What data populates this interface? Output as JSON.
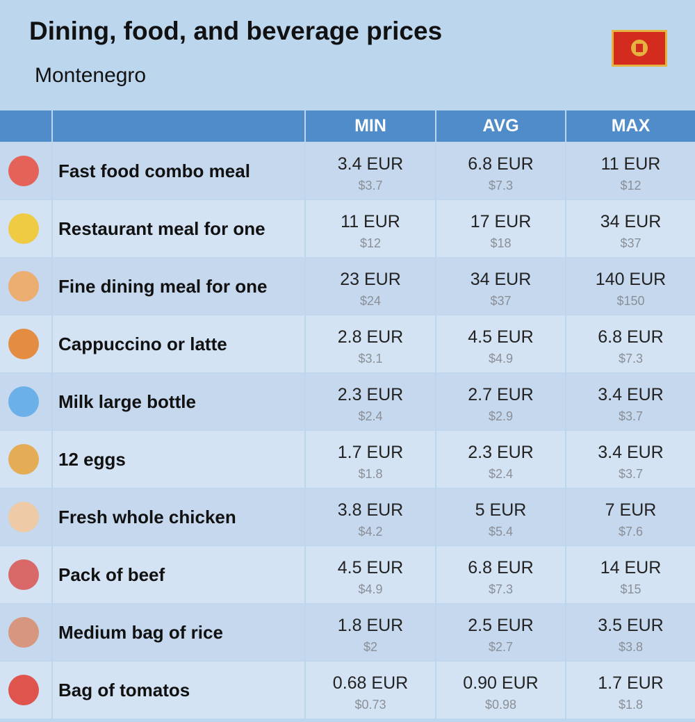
{
  "header": {
    "title": "Dining, food, and beverage prices",
    "subtitle": "Montenegro"
  },
  "table": {
    "columns": [
      "MIN",
      "AVG",
      "MAX"
    ],
    "rows": [
      {
        "label": "Fast food combo meal",
        "cells": [
          [
            "3.4 EUR",
            "$3.7"
          ],
          [
            "6.8 EUR",
            "$7.3"
          ],
          [
            "11 EUR",
            "$12"
          ]
        ]
      },
      {
        "label": "Restaurant meal for one",
        "cells": [
          [
            "11 EUR",
            "$12"
          ],
          [
            "17 EUR",
            "$18"
          ],
          [
            "34 EUR",
            "$37"
          ]
        ]
      },
      {
        "label": "Fine dining meal for one",
        "cells": [
          [
            "23 EUR",
            "$24"
          ],
          [
            "34 EUR",
            "$37"
          ],
          [
            "140 EUR",
            "$150"
          ]
        ]
      },
      {
        "label": "Cappuccino or latte",
        "cells": [
          [
            "2.8 EUR",
            "$3.1"
          ],
          [
            "4.5 EUR",
            "$4.9"
          ],
          [
            "6.8 EUR",
            "$7.3"
          ]
        ]
      },
      {
        "label": "Milk large bottle",
        "cells": [
          [
            "2.3 EUR",
            "$2.4"
          ],
          [
            "2.7 EUR",
            "$2.9"
          ],
          [
            "3.4 EUR",
            "$3.7"
          ]
        ]
      },
      {
        "label": "12 eggs",
        "cells": [
          [
            "1.7 EUR",
            "$1.8"
          ],
          [
            "2.3 EUR",
            "$2.4"
          ],
          [
            "3.4 EUR",
            "$3.7"
          ]
        ]
      },
      {
        "label": "Fresh whole chicken",
        "cells": [
          [
            "3.8 EUR",
            "$4.2"
          ],
          [
            "5 EUR",
            "$5.4"
          ],
          [
            "7 EUR",
            "$7.6"
          ]
        ]
      },
      {
        "label": "Pack of beef",
        "cells": [
          [
            "4.5 EUR",
            "$4.9"
          ],
          [
            "6.8 EUR",
            "$7.3"
          ],
          [
            "14 EUR",
            "$15"
          ]
        ]
      },
      {
        "label": "Medium bag of rice",
        "cells": [
          [
            "1.8 EUR",
            "$2"
          ],
          [
            "2.5 EUR",
            "$2.7"
          ],
          [
            "3.5 EUR",
            "$3.8"
          ]
        ]
      },
      {
        "label": "Bag of tomatos",
        "cells": [
          [
            "0.68 EUR",
            "$0.73"
          ],
          [
            "0.90 EUR",
            "$0.98"
          ],
          [
            "1.7 EUR",
            "$1.8"
          ]
        ]
      }
    ]
  }
}
